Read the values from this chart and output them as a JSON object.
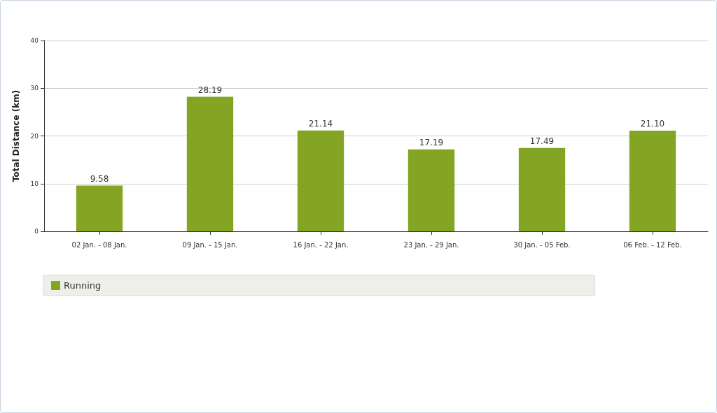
{
  "chart_data": {
    "type": "bar",
    "ylabel": "Total Distance (km)",
    "categories": [
      "02 Jan. - 08 Jan.",
      "09 Jan. - 15 Jan.",
      "16 Jan. - 22 Jan.",
      "23 Jan. - 29 Jan.",
      "30 Jan. - 05 Feb.",
      "06 Feb. - 12 Feb."
    ],
    "series": [
      {
        "name": "Running",
        "color": "#84a424",
        "values": [
          9.58,
          28.19,
          21.14,
          17.19,
          17.49,
          21.1
        ],
        "value_labels": [
          "9.58",
          "28.19",
          "21.14",
          "17.19",
          "17.49",
          "21.10"
        ]
      }
    ],
    "ylim": [
      0,
      40
    ],
    "yticks": [
      0,
      10,
      20,
      30,
      40
    ],
    "grid": "y",
    "legend": "bottom left"
  }
}
